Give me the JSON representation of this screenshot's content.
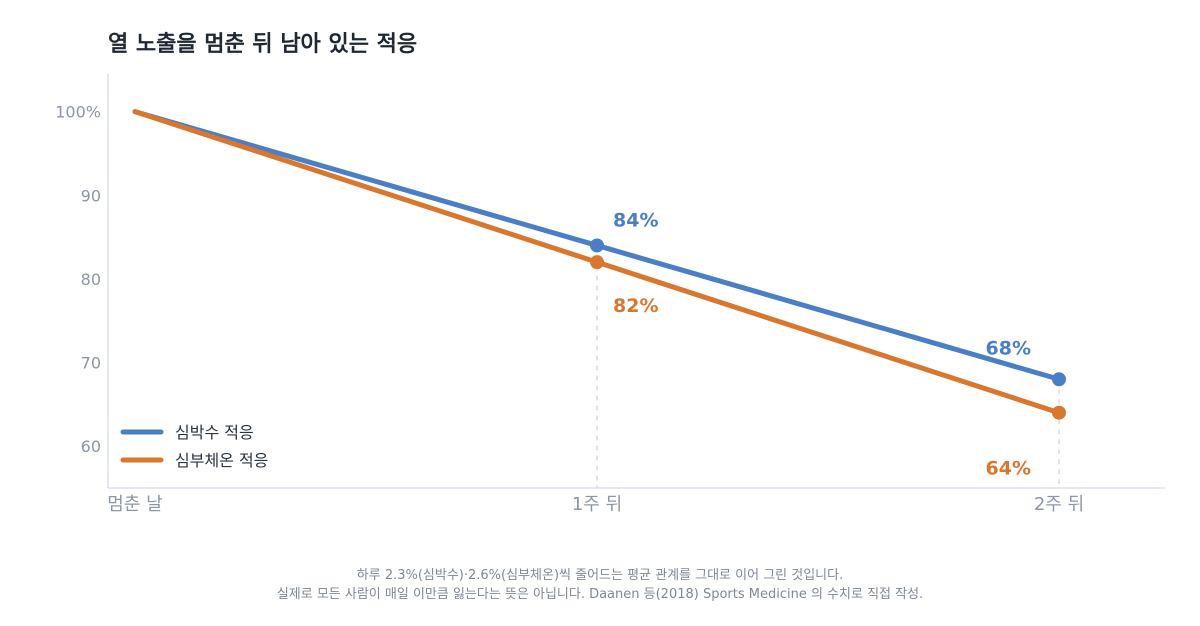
{
  "chart_data": {
    "type": "line",
    "title": "열 노출을 멈춘 뒤 남아 있는 적응",
    "categories": [
      "멈춘 날",
      "1주 뒤",
      "2주 뒤"
    ],
    "y_tick_labels": [
      "100%",
      "90",
      "80",
      "70",
      "60"
    ],
    "y_ticks": [
      100,
      90,
      80,
      70,
      60
    ],
    "ylim": [
      55,
      104.5
    ],
    "grid": false,
    "legend_position": "bottom-left",
    "series": [
      {
        "name": "심박수 적응",
        "color": "#4a7ec6",
        "values": [
          100,
          84,
          68
        ],
        "labels": [
          "",
          "84%",
          "68%"
        ]
      },
      {
        "name": "심부체온 적응",
        "color": "#d9772e",
        "values": [
          100,
          82,
          64
        ],
        "labels": [
          "",
          "82%",
          "64%"
        ]
      }
    ]
  },
  "footnote": {
    "line1": "하루 2.3%(심박수)·2.6%(심부체온)씩 줄어드는 평균 관계를 그대로 이어 그린 것입니다.",
    "line2": "실제로 모든 사람이 매일 이만큼 잃는다는 뜻은 아닙니다. Daanen 등(2018) Sports Medicine 의 수치로 직접 작성."
  },
  "colors": {
    "axis": "#c9d2e2",
    "tick_text": "#8d96a6",
    "guide": "#d5dae2",
    "title": "#1f2733"
  }
}
